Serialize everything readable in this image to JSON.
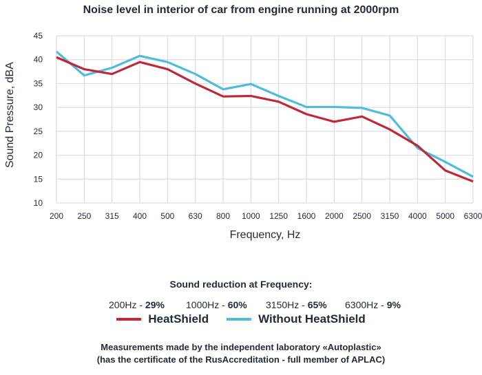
{
  "chart_data": {
    "type": "line",
    "title": "Noise level in interior of car from engine running at 2000rpm",
    "xlabel": "Frequency, Hz",
    "ylabel": "Sound Pressure, dBA",
    "categories": [
      "200",
      "250",
      "315",
      "400",
      "500",
      "630",
      "800",
      "1000",
      "1250",
      "1600",
      "2000",
      "2500",
      "3150",
      "4000",
      "5000",
      "6300"
    ],
    "ylim": [
      10,
      45
    ],
    "yticks": [
      "10",
      "15",
      "20",
      "25",
      "30",
      "35",
      "40",
      "45"
    ],
    "grid": true,
    "legend_position": "bottom",
    "series": [
      {
        "name": "HeatShield",
        "color": "#c0283a",
        "values": [
          40.5,
          38.0,
          37.0,
          39.5,
          38.0,
          35.0,
          32.3,
          32.4,
          31.2,
          28.6,
          27.0,
          28.1,
          25.4,
          22.0,
          16.8,
          14.5
        ]
      },
      {
        "name": "Without HeatShield",
        "color": "#4fbcdb",
        "values": [
          41.7,
          36.7,
          38.3,
          40.8,
          39.5,
          37.0,
          33.8,
          34.9,
          32.4,
          30.1,
          30.1,
          29.9,
          28.3,
          21.5,
          18.6,
          15.5
        ]
      }
    ]
  },
  "reduction": {
    "title": "Sound reduction at Frequency:",
    "items": [
      {
        "freq": "200Hz - ",
        "value": "29%"
      },
      {
        "freq": "1000Hz - ",
        "value": "60%"
      },
      {
        "freq": "3150Hz - ",
        "value": "65%"
      },
      {
        "freq": "6300Hz - ",
        "value": "9%"
      }
    ]
  },
  "notes": {
    "line1": "Measurements made by the independent laboratory «Autoplastic»",
    "line2": "(has the certificate of the RusAccreditation - full member of APLAC)"
  }
}
